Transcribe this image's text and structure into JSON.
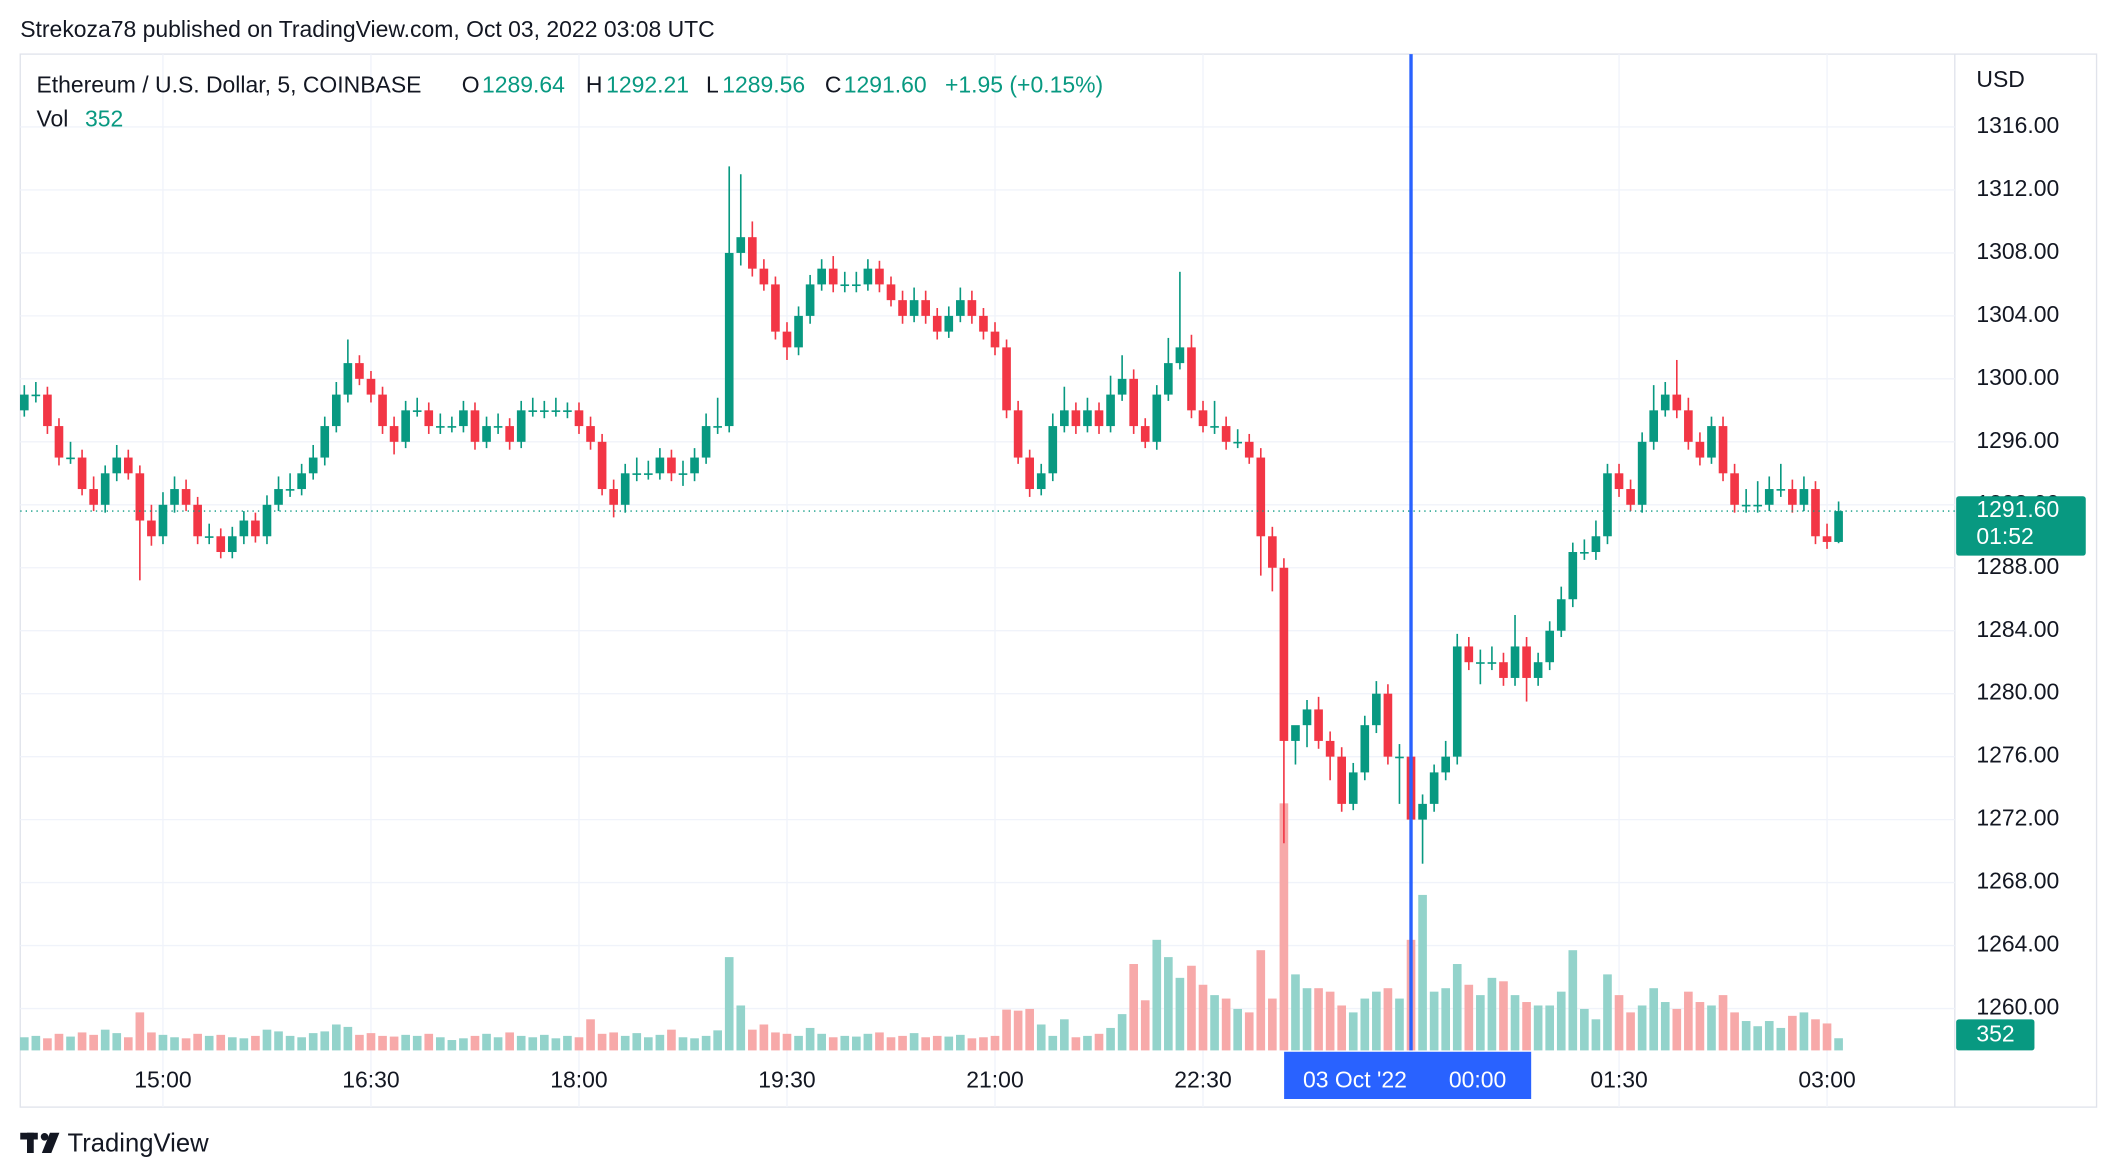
{
  "header": "Strekoza78 published on TradingView.com, Oct 03, 2022 03:08 UTC",
  "footer": "TradingView",
  "chart_data": {
    "type": "candlestick",
    "symbol": "Ethereum / U.S. Dollar, 5, COINBASE",
    "legend_keys": [
      "O",
      "H",
      "L",
      "C"
    ],
    "last_labels": {
      "open": "1289.64",
      "high": "1292.21",
      "low": "1289.56",
      "close": "1291.60",
      "change": "+1.95 (+0.15%)"
    },
    "volume_label": "Vol",
    "currency": "USD",
    "countdown": "01:52",
    "crosshair": {
      "date": "03 Oct '22",
      "x": "00:00"
    },
    "up_color": "#089981",
    "down_color": "#f23645",
    "volume_up_color": "#93d3cb",
    "volume_down_color": "#f7a9a9",
    "crosshair_color": "#2962ff",
    "grid": true,
    "ylim": [
      1257.34,
      1320.63
    ],
    "yticks": [
      {
        "value": 1260,
        "label": "1260.00"
      },
      {
        "value": 1264,
        "label": "1264.00"
      },
      {
        "value": 1268,
        "label": "1268.00"
      },
      {
        "value": 1272,
        "label": "1272.00"
      },
      {
        "value": 1276,
        "label": "1276.00"
      },
      {
        "value": 1280,
        "label": "1280.00"
      },
      {
        "value": 1284,
        "label": "1284.00"
      },
      {
        "value": 1288,
        "label": "1288.00"
      },
      {
        "value": 1292,
        "label": "1292.00"
      },
      {
        "value": 1296,
        "label": "1296.00"
      },
      {
        "value": 1300,
        "label": "1300.00"
      },
      {
        "value": 1304,
        "label": "1304.00"
      },
      {
        "value": 1308,
        "label": "1308.00"
      },
      {
        "value": 1312,
        "label": "1312.00"
      },
      {
        "value": 1316,
        "label": "1316.00"
      }
    ],
    "xticks": [
      "15:00",
      "16:30",
      "18:00",
      "19:30",
      "21:00",
      "22:30",
      "01:30",
      "03:00"
    ],
    "x": [
      "14:00",
      "14:05",
      "14:10",
      "14:15",
      "14:20",
      "14:25",
      "14:30",
      "14:35",
      "14:40",
      "14:45",
      "14:50",
      "14:55",
      "15:00",
      "15:05",
      "15:10",
      "15:15",
      "15:20",
      "15:25",
      "15:30",
      "15:35",
      "15:40",
      "15:45",
      "15:50",
      "15:55",
      "16:00",
      "16:05",
      "16:10",
      "16:15",
      "16:20",
      "16:25",
      "16:30",
      "16:35",
      "16:40",
      "16:45",
      "16:50",
      "16:55",
      "17:00",
      "17:05",
      "17:10",
      "17:15",
      "17:20",
      "17:25",
      "17:30",
      "17:35",
      "17:40",
      "17:45",
      "17:50",
      "17:55",
      "18:00",
      "18:05",
      "18:10",
      "18:15",
      "18:20",
      "18:25",
      "18:30",
      "18:35",
      "18:40",
      "18:45",
      "18:50",
      "18:55",
      "19:00",
      "19:05",
      "19:10",
      "19:15",
      "19:20",
      "19:25",
      "19:30",
      "19:35",
      "19:40",
      "19:45",
      "19:50",
      "19:55",
      "20:00",
      "20:05",
      "20:10",
      "20:15",
      "20:20",
      "20:25",
      "20:30",
      "20:35",
      "20:40",
      "20:45",
      "20:50",
      "20:55",
      "21:00",
      "21:05",
      "21:10",
      "21:15",
      "21:20",
      "21:25",
      "21:30",
      "21:35",
      "21:40",
      "21:45",
      "21:50",
      "21:55",
      "22:00",
      "22:05",
      "22:10",
      "22:15",
      "22:20",
      "22:25",
      "22:30",
      "22:35",
      "22:40",
      "22:45",
      "22:50",
      "22:55",
      "23:00",
      "23:05",
      "23:10",
      "23:15",
      "23:20",
      "23:25",
      "23:30",
      "23:35",
      "23:40",
      "23:45",
      "23:50",
      "23:55",
      "00:00",
      "00:05",
      "00:10",
      "00:15",
      "00:20",
      "00:25",
      "00:30",
      "00:35",
      "00:40",
      "00:45",
      "00:50",
      "00:55",
      "01:00",
      "01:05",
      "01:10",
      "01:15",
      "01:20",
      "01:25",
      "01:30",
      "01:35",
      "01:40",
      "01:45",
      "01:50",
      "01:55",
      "02:00",
      "02:05",
      "02:10",
      "02:15",
      "02:20",
      "02:25",
      "02:30",
      "02:35",
      "02:40",
      "02:45",
      "02:50",
      "02:55",
      "03:00",
      "03:05"
    ],
    "open": [
      1298,
      1299,
      1299,
      1297,
      1295,
      1295,
      1293,
      1292,
      1294,
      1295,
      1294,
      1291,
      1290,
      1292,
      1293,
      1292,
      1290,
      1290,
      1289,
      1290,
      1291,
      1290,
      1292,
      1293,
      1293,
      1294,
      1295,
      1297,
      1299,
      1301,
      1300,
      1299,
      1297,
      1296,
      1298,
      1298,
      1297,
      1297,
      1297,
      1298,
      1296,
      1297,
      1297,
      1296,
      1298,
      1298,
      1298,
      1298,
      1298,
      1297,
      1296,
      1293,
      1292,
      1294,
      1294,
      1294,
      1295,
      1294,
      1294,
      1295,
      1297,
      1297,
      1308,
      1309,
      1307,
      1306,
      1303,
      1302,
      1304,
      1306,
      1307,
      1306,
      1306,
      1306,
      1307,
      1306,
      1305,
      1304,
      1305,
      1304,
      1303,
      1304,
      1305,
      1304,
      1303,
      1302,
      1298,
      1295,
      1293,
      1294,
      1297,
      1298,
      1297,
      1298,
      1297,
      1299,
      1300,
      1297,
      1296,
      1299,
      1301,
      1302,
      1298,
      1297,
      1297,
      1296,
      1296,
      1295,
      1290,
      1288,
      1277,
      1278,
      1279,
      1277,
      1276,
      1273,
      1275,
      1278,
      1280,
      1276,
      1276,
      1272,
      1273,
      1275,
      1276,
      1283,
      1282,
      1282,
      1282,
      1281,
      1283,
      1281,
      1282,
      1284,
      1286,
      1289,
      1289,
      1290,
      1294,
      1293,
      1292,
      1296,
      1298,
      1299,
      1298,
      1296,
      1295,
      1297,
      1294,
      1292,
      1292,
      1292,
      1293,
      1293,
      1292,
      1293,
      1290,
      1289.64
    ],
    "high": [
      1299.6,
      1299.8,
      1299.5,
      1297.5,
      1296,
      1295.5,
      1293.8,
      1294.5,
      1295.8,
      1295.5,
      1294.5,
      1292,
      1292.8,
      1293.8,
      1293.6,
      1292.5,
      1290.8,
      1290.5,
      1290.6,
      1291.6,
      1291.5,
      1292.6,
      1293.8,
      1294,
      1294.6,
      1295.8,
      1297.6,
      1299.8,
      1302.5,
      1301.5,
      1300.5,
      1299.5,
      1297.6,
      1298.6,
      1298.8,
      1298.5,
      1297.8,
      1297.6,
      1298.6,
      1298.5,
      1297.6,
      1297.8,
      1297.5,
      1298.6,
      1298.8,
      1298.6,
      1298.8,
      1298.5,
      1298.5,
      1297.6,
      1296.5,
      1293.6,
      1294.6,
      1295,
      1294.8,
      1295.6,
      1295.5,
      1294.8,
      1295.6,
      1297.8,
      1298.8,
      1313.5,
      1313,
      1310,
      1307.6,
      1306.5,
      1303.6,
      1304.6,
      1306.6,
      1307.6,
      1307.8,
      1306.8,
      1306.8,
      1307.6,
      1307.5,
      1306.5,
      1305.6,
      1305.8,
      1305.6,
      1304.5,
      1304.6,
      1305.8,
      1305.6,
      1304.5,
      1303.6,
      1302.5,
      1298.6,
      1295.5,
      1294.6,
      1297.8,
      1299.5,
      1298.5,
      1298.8,
      1298.5,
      1300.2,
      1301.5,
      1300.6,
      1297.5,
      1299.6,
      1302.6,
      1306.8,
      1302.8,
      1298.6,
      1298.6,
      1297.6,
      1296.8,
      1296.5,
      1295.6,
      1290.6,
      1288.6,
      1277.8,
      1279.6,
      1279.8,
      1277.6,
      1276.6,
      1275.6,
      1278.6,
      1280.8,
      1280.6,
      1276.8,
      1278.5,
      1273.6,
      1275.5,
      1277,
      1283.8,
      1283.6,
      1282.8,
      1283,
      1282.6,
      1285,
      1283.6,
      1282.6,
      1284.6,
      1286.8,
      1289.6,
      1289.8,
      1291,
      1294.6,
      1294.6,
      1293.6,
      1296.6,
      1299.6,
      1299.8,
      1301.2,
      1298.8,
      1296.6,
      1297.6,
      1297.6,
      1294.6,
      1293,
      1293.5,
      1293.8,
      1294.6,
      1293.6,
      1293.8,
      1293.5,
      1290.8,
      1292.21
    ],
    "low": [
      1297.6,
      1298.5,
      1296.5,
      1294.5,
      1294.6,
      1292.6,
      1291.6,
      1291.5,
      1293.5,
      1293.6,
      1287.2,
      1289.4,
      1289.5,
      1291.5,
      1291.6,
      1289.5,
      1289.5,
      1288.6,
      1288.6,
      1289.5,
      1289.6,
      1289.5,
      1291.6,
      1292.5,
      1292.6,
      1293.6,
      1294.5,
      1296.6,
      1298.5,
      1299.6,
      1298.5,
      1296.5,
      1295.2,
      1295.6,
      1297.6,
      1296.5,
      1296.5,
      1296.6,
      1296.6,
      1295.5,
      1295.6,
      1296.5,
      1295.5,
      1295.6,
      1297.6,
      1297.5,
      1297.6,
      1297.5,
      1296.5,
      1295.5,
      1292.6,
      1291.2,
      1291.5,
      1293.5,
      1293.6,
      1293.6,
      1293.5,
      1293.2,
      1293.5,
      1294.6,
      1296.5,
      1296.6,
      1307.2,
      1306.5,
      1305.6,
      1302.5,
      1301.2,
      1301.5,
      1303.5,
      1305.6,
      1305.5,
      1305.5,
      1305.5,
      1305.6,
      1305.5,
      1304.6,
      1303.5,
      1303.6,
      1303.5,
      1302.5,
      1302.6,
      1303.6,
      1303.5,
      1302.5,
      1301.5,
      1297.5,
      1294.6,
      1292.5,
      1292.6,
      1293.5,
      1296.6,
      1296.5,
      1296.6,
      1296.5,
      1296.6,
      1298.6,
      1296.5,
      1295.6,
      1295.5,
      1298.6,
      1300.6,
      1297.5,
      1296.6,
      1296.5,
      1295.5,
      1295.6,
      1294.6,
      1287.5,
      1286.5,
      1270.5,
      1275.5,
      1276.6,
      1276.5,
      1274.5,
      1272.5,
      1272.6,
      1274.5,
      1277.5,
      1275.5,
      1273,
      1270.5,
      1269.2,
      1272.5,
      1274.5,
      1275.5,
      1281.5,
      1280.6,
      1281.5,
      1280.5,
      1280.5,
      1279.5,
      1280.5,
      1281.5,
      1283.6,
      1285.5,
      1288.5,
      1288.5,
      1289.5,
      1292.5,
      1291.6,
      1291.5,
      1295.5,
      1297.6,
      1297.5,
      1295.5,
      1294.5,
      1294.6,
      1293.5,
      1291.5,
      1291.5,
      1291.5,
      1291.6,
      1292.5,
      1291.5,
      1291.6,
      1289.5,
      1289.2,
      1289.56
    ],
    "close": [
      1299,
      1299,
      1297,
      1295,
      1295,
      1293,
      1292,
      1294,
      1295,
      1294,
      1291,
      1290,
      1292,
      1293,
      1292,
      1290,
      1290,
      1289,
      1290,
      1291,
      1290,
      1292,
      1293,
      1293,
      1294,
      1295,
      1297,
      1299,
      1301,
      1300,
      1299,
      1297,
      1296,
      1298,
      1298,
      1297,
      1297,
      1297,
      1298,
      1296,
      1297,
      1297,
      1296,
      1298,
      1298,
      1298,
      1298,
      1298,
      1297,
      1296,
      1293,
      1292,
      1294,
      1294,
      1294,
      1295,
      1294,
      1294,
      1295,
      1297,
      1297,
      1308,
      1309,
      1307,
      1306,
      1303,
      1302,
      1304,
      1306,
      1307,
      1306,
      1306,
      1306,
      1307,
      1306,
      1305,
      1304,
      1305,
      1304,
      1303,
      1304,
      1305,
      1304,
      1303,
      1302,
      1298,
      1295,
      1293,
      1294,
      1297,
      1298,
      1297,
      1298,
      1297,
      1299,
      1300,
      1297,
      1296,
      1299,
      1301,
      1302,
      1298,
      1297,
      1297,
      1296,
      1296,
      1295,
      1290,
      1288,
      1277,
      1278,
      1279,
      1277,
      1276,
      1273,
      1275,
      1278,
      1280,
      1276,
      1276,
      1272,
      1273,
      1275,
      1276,
      1283,
      1282,
      1282,
      1282,
      1281,
      1283,
      1281,
      1282,
      1284,
      1286,
      1289,
      1289,
      1290,
      1294,
      1293,
      1292,
      1296,
      1298,
      1299,
      1298,
      1296,
      1295,
      1297,
      1294,
      1292,
      1292,
      1292,
      1293,
      1293,
      1292,
      1293,
      1290,
      1289.64,
      1291.6
    ],
    "volume": [
      380,
      420,
      350,
      480,
      400,
      520,
      450,
      600,
      500,
      380,
      1100,
      520,
      450,
      380,
      350,
      480,
      420,
      450,
      380,
      350,
      420,
      600,
      550,
      420,
      380,
      500,
      550,
      750,
      680,
      450,
      500,
      420,
      400,
      450,
      420,
      480,
      380,
      300,
      350,
      420,
      480,
      380,
      520,
      420,
      380,
      450,
      350,
      420,
      380,
      900,
      480,
      520,
      420,
      500,
      380,
      450,
      600,
      380,
      350,
      420,
      580,
      2700,
      1300,
      600,
      750,
      520,
      480,
      420,
      650,
      480,
      380,
      420,
      400,
      480,
      520,
      380,
      420,
      500,
      380,
      420,
      400,
      450,
      350,
      380,
      420,
      1180,
      1150,
      1200,
      750,
      420,
      900,
      380,
      420,
      480,
      650,
      1050,
      2500,
      1450,
      3200,
      2700,
      2100,
      2450,
      1900,
      1600,
      1500,
      1200,
      1100,
      2900,
      1500,
      7150,
      2200,
      1800,
      1800,
      1700,
      1300,
      1100,
      1500,
      1700,
      1800,
      1500,
      3200,
      4500,
      1700,
      1800,
      2500,
      1900,
      1600,
      2100,
      2000,
      1600,
      1400,
      1300,
      1300,
      1700,
      2900,
      1200,
      900,
      2200,
      1600,
      1100,
      1300,
      1800,
      1400,
      1200,
      1700,
      1400,
      1300,
      1600,
      1100,
      850,
      700,
      850,
      650,
      1000,
      1100,
      900,
      780,
      352
    ]
  }
}
